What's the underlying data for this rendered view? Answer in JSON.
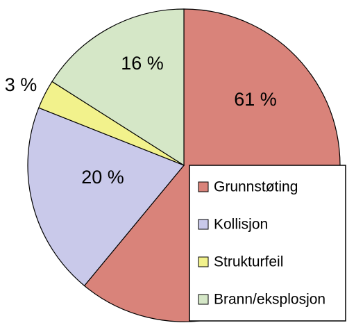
{
  "chart_data": {
    "type": "pie",
    "categories": [
      "Grunnstøting",
      "Kollisjon",
      "Strukturfeil",
      "Brann/eksplosjon"
    ],
    "values": [
      61,
      20,
      3,
      16
    ],
    "value_labels": [
      "61 %",
      "20 %",
      "3 %",
      "16 %"
    ],
    "colors": [
      "#d9837a",
      "#c9c9ea",
      "#f2f28c",
      "#d5e7c7"
    ]
  }
}
